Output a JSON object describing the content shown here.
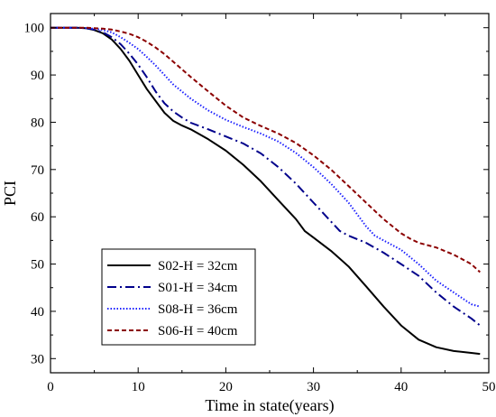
{
  "chart_data": {
    "type": "line",
    "title": "",
    "xlabel": "Time in state(years)",
    "ylabel": "PCI",
    "xlim": [
      0,
      50
    ],
    "ylim": [
      27,
      103
    ],
    "xticks": [
      0,
      10,
      20,
      30,
      40,
      50
    ],
    "yticks": [
      30,
      40,
      50,
      60,
      70,
      80,
      90,
      100
    ],
    "grid": false,
    "legend_position": "lower-left",
    "series": [
      {
        "name": "S02-H = 32cm",
        "color": "#000000",
        "dash": "solid",
        "x": [
          0,
          3,
          4,
          5,
          6,
          7,
          8,
          9,
          10,
          11,
          12,
          13,
          14,
          15,
          16,
          18,
          20,
          22,
          24,
          26,
          28,
          29,
          30,
          32,
          34,
          36,
          38,
          40,
          42,
          44,
          46,
          48,
          49
        ],
        "y": [
          100,
          100,
          99.9,
          99.5,
          98.8,
          97.5,
          95.5,
          93,
          90,
          87,
          84.5,
          82,
          80.3,
          79.3,
          78.5,
          76.4,
          74,
          71,
          67.5,
          63.5,
          59.5,
          57,
          55.6,
          52.8,
          49.5,
          45.3,
          41,
          37,
          34,
          32.4,
          31.6,
          31.2,
          31
        ]
      },
      {
        "name": "S01-H = 34cm",
        "color": "#00008b",
        "dash": "dashdot",
        "x": [
          0,
          3,
          4,
          5,
          6,
          7,
          8,
          9,
          10,
          11,
          12,
          13,
          14,
          15,
          16,
          18,
          20,
          22,
          24,
          26,
          28,
          30,
          32,
          33,
          34,
          36,
          38,
          40,
          42,
          44,
          46,
          48,
          49
        ],
        "y": [
          100,
          100,
          99.9,
          99.6,
          99,
          98,
          96.5,
          94.5,
          92.2,
          89.5,
          86.5,
          84,
          82.3,
          81,
          79.9,
          78.5,
          77,
          75.5,
          73.4,
          70.5,
          67,
          63,
          59,
          57,
          56,
          54.5,
          52.4,
          50,
          47.5,
          44,
          41,
          38.5,
          37
        ]
      },
      {
        "name": "S08-H = 36cm",
        "color": "#1e22ff",
        "dash": "dotted",
        "x": [
          0,
          3,
          4,
          5,
          6,
          7,
          8,
          9,
          10,
          11,
          12,
          13,
          14,
          16,
          18,
          20,
          22,
          24,
          26,
          28,
          30,
          32,
          34,
          35,
          36,
          37,
          38,
          40,
          42,
          44,
          46,
          48,
          49
        ],
        "y": [
          100,
          100,
          99.9,
          99.8,
          99.5,
          99,
          98,
          96.8,
          95.5,
          93.8,
          92,
          90,
          88,
          85,
          82.5,
          80.5,
          79,
          77.6,
          75.9,
          73.5,
          70.5,
          67,
          63,
          60.5,
          58,
          56,
          55,
          53,
          50,
          46.5,
          44,
          41.5,
          41
        ]
      },
      {
        "name": "S06-H = 40cm",
        "color": "#8b0000",
        "dash": "dashed",
        "x": [
          0,
          3,
          4,
          5,
          6,
          7,
          8,
          9,
          10,
          11,
          12,
          13,
          14,
          15,
          16,
          18,
          20,
          22,
          24,
          26,
          28,
          30,
          32,
          34,
          36,
          38,
          40,
          41,
          42,
          44,
          46,
          48,
          49
        ],
        "y": [
          100,
          100,
          100,
          99.9,
          99.8,
          99.6,
          99.2,
          98.7,
          98,
          97,
          95.8,
          94.4,
          92.8,
          91.2,
          89.6,
          86.5,
          83.5,
          81,
          79.2,
          77.6,
          75.6,
          73,
          70,
          66.5,
          63,
          59.5,
          56.5,
          55.4,
          54.5,
          53.5,
          52,
          50,
          48.3
        ]
      }
    ]
  }
}
